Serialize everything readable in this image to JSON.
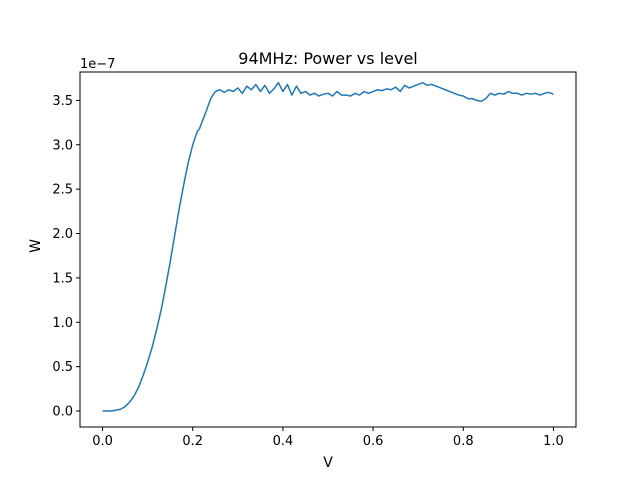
{
  "chart_data": {
    "type": "line",
    "title": "94MHz: Power vs level",
    "xlabel": "V",
    "ylabel": "W",
    "y_multiplier": "1e−7",
    "xlim": [
      -0.05,
      1.05
    ],
    "ylim": [
      -0.18,
      3.82
    ],
    "x_ticks": [
      0.0,
      0.2,
      0.4,
      0.6,
      0.8,
      1.0
    ],
    "x_tick_labels": [
      "0.0",
      "0.2",
      "0.4",
      "0.6",
      "0.8",
      "1.0"
    ],
    "y_ticks": [
      0.0,
      0.5,
      1.0,
      1.5,
      2.0,
      2.5,
      3.0,
      3.5
    ],
    "y_tick_labels": [
      "0.0",
      "0.5",
      "1.0",
      "1.5",
      "2.0",
      "2.5",
      "3.0",
      "3.5"
    ],
    "grid": false,
    "legend": "none",
    "line_color": "#1f77b4",
    "series": [
      {
        "x": [
          0.0,
          0.02,
          0.04,
          0.05,
          0.06,
          0.07,
          0.08,
          0.09,
          0.1,
          0.11,
          0.12,
          0.13,
          0.14,
          0.15,
          0.16,
          0.17,
          0.18,
          0.19,
          0.2,
          0.21,
          0.215,
          0.22,
          0.23,
          0.24,
          0.25,
          0.26,
          0.27,
          0.28,
          0.29,
          0.3,
          0.31,
          0.32,
          0.33,
          0.34,
          0.35,
          0.36,
          0.37,
          0.38,
          0.39,
          0.4,
          0.41,
          0.42,
          0.43,
          0.44,
          0.45,
          0.46,
          0.47,
          0.48,
          0.49,
          0.5,
          0.51,
          0.52,
          0.53,
          0.54,
          0.55,
          0.56,
          0.57,
          0.58,
          0.59,
          0.6,
          0.61,
          0.62,
          0.63,
          0.64,
          0.65,
          0.66,
          0.67,
          0.68,
          0.69,
          0.7,
          0.71,
          0.72,
          0.73,
          0.74,
          0.75,
          0.76,
          0.77,
          0.78,
          0.79,
          0.8,
          0.81,
          0.82,
          0.83,
          0.84,
          0.85,
          0.86,
          0.87,
          0.88,
          0.89,
          0.9,
          0.91,
          0.92,
          0.93,
          0.94,
          0.95,
          0.96,
          0.97,
          0.98,
          0.99,
          1.0
        ],
        "y": [
          0.0,
          0.0,
          0.02,
          0.05,
          0.1,
          0.17,
          0.27,
          0.4,
          0.55,
          0.72,
          0.92,
          1.14,
          1.4,
          1.68,
          1.98,
          2.28,
          2.55,
          2.8,
          3.0,
          3.15,
          3.18,
          3.25,
          3.38,
          3.52,
          3.6,
          3.62,
          3.59,
          3.62,
          3.6,
          3.64,
          3.58,
          3.66,
          3.62,
          3.68,
          3.6,
          3.67,
          3.58,
          3.63,
          3.7,
          3.6,
          3.68,
          3.56,
          3.66,
          3.58,
          3.6,
          3.56,
          3.58,
          3.55,
          3.57,
          3.58,
          3.55,
          3.6,
          3.56,
          3.56,
          3.55,
          3.58,
          3.56,
          3.6,
          3.58,
          3.6,
          3.62,
          3.61,
          3.63,
          3.62,
          3.65,
          3.6,
          3.67,
          3.64,
          3.66,
          3.68,
          3.7,
          3.67,
          3.68,
          3.66,
          3.64,
          3.62,
          3.6,
          3.58,
          3.56,
          3.55,
          3.52,
          3.52,
          3.5,
          3.49,
          3.52,
          3.58,
          3.56,
          3.58,
          3.57,
          3.6,
          3.58,
          3.58,
          3.56,
          3.58,
          3.57,
          3.58,
          3.56,
          3.58,
          3.59,
          3.57
        ]
      }
    ]
  }
}
